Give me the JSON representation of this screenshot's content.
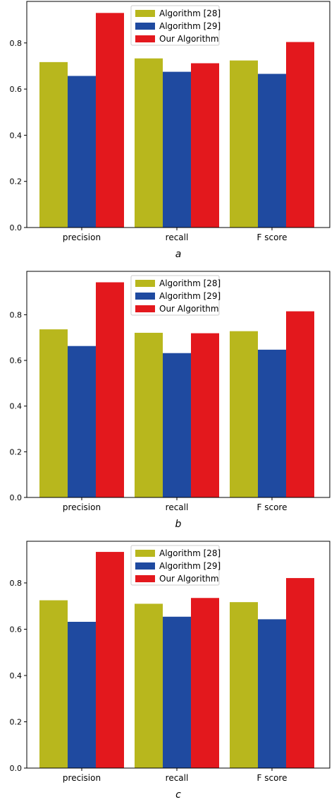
{
  "colors": {
    "series_1": "#b8b71d",
    "series_2": "#1f4aa0",
    "series_3": "#e3181d"
  },
  "chart_data": [
    {
      "type": "bar",
      "caption": "a",
      "categories": [
        "precision",
        "recall",
        "F score"
      ],
      "series": [
        {
          "name": "Algorithm [28]",
          "values": [
            0.717,
            0.733,
            0.724
          ]
        },
        {
          "name": "Algorithm [29]",
          "values": [
            0.657,
            0.675,
            0.666
          ]
        },
        {
          "name": "Our Algorithm",
          "values": [
            0.93,
            0.712,
            0.804
          ]
        }
      ],
      "ylim": [
        0,
        0.98
      ],
      "yticks": [
        "0.0",
        "0.2",
        "0.4",
        "0.6",
        "0.8"
      ],
      "legend": "top-center",
      "grid": false
    },
    {
      "type": "bar",
      "caption": "b",
      "categories": [
        "precision",
        "recall",
        "F score"
      ],
      "series": [
        {
          "name": "Algorithm [28]",
          "values": [
            0.736,
            0.721,
            0.728
          ]
        },
        {
          "name": "Algorithm [29]",
          "values": [
            0.663,
            0.632,
            0.647
          ]
        },
        {
          "name": "Our Algorithm",
          "values": [
            0.942,
            0.719,
            0.815
          ]
        }
      ],
      "ylim": [
        0,
        0.99
      ],
      "yticks": [
        "0.0",
        "0.2",
        "0.4",
        "0.6",
        "0.8"
      ],
      "legend": "top-center",
      "grid": false
    },
    {
      "type": "bar",
      "caption": "c",
      "categories": [
        "precision",
        "recall",
        "F score"
      ],
      "series": [
        {
          "name": "Algorithm [28]",
          "values": [
            0.725,
            0.71,
            0.717
          ]
        },
        {
          "name": "Algorithm [29]",
          "values": [
            0.632,
            0.654,
            0.643
          ]
        },
        {
          "name": "Our Algorithm",
          "values": [
            0.934,
            0.735,
            0.821
          ]
        }
      ],
      "ylim": [
        0,
        0.98
      ],
      "yticks": [
        "0.0",
        "0.2",
        "0.4",
        "0.6",
        "0.8"
      ],
      "legend": "top-center",
      "grid": false
    }
  ]
}
